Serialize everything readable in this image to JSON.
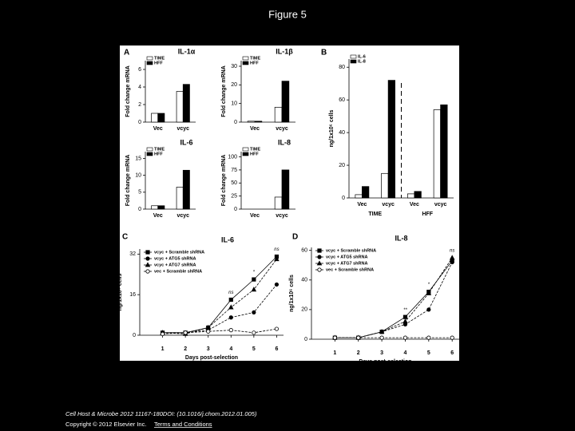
{
  "header": {
    "title": "Figure 5"
  },
  "figure": {
    "panel_labels": [
      "A",
      "B",
      "C",
      "D"
    ]
  },
  "chart_data": [
    {
      "type": "bar",
      "title": "IL-1α",
      "ylabel": "Fold change mRNA",
      "categories": [
        "Vec",
        "vcyc"
      ],
      "series": [
        {
          "name": "TIME",
          "color": "#ffffff",
          "values": [
            1,
            3.5
          ]
        },
        {
          "name": "HFF",
          "color": "#000000",
          "values": [
            1,
            4.3
          ]
        }
      ],
      "ylim": [
        0,
        7
      ],
      "yticks": [
        0,
        2,
        4,
        6
      ]
    },
    {
      "type": "bar",
      "title": "IL-1β",
      "ylabel": "Fold change mRNA",
      "categories": [
        "Vec",
        "vcyc"
      ],
      "series": [
        {
          "name": "TIME",
          "color": "#ffffff",
          "values": [
            0.5,
            8
          ]
        },
        {
          "name": "HFF",
          "color": "#000000",
          "values": [
            0.5,
            22
          ]
        }
      ],
      "ylim": [
        0,
        33
      ],
      "yticks": [
        0,
        10,
        20,
        30
      ]
    },
    {
      "type": "bar",
      "title": "IL-6",
      "ylabel": "Fold change mRNA",
      "categories": [
        "Vec",
        "vcyc"
      ],
      "series": [
        {
          "name": "TIME",
          "color": "#ffffff",
          "values": [
            1,
            6.5
          ]
        },
        {
          "name": "HFF",
          "color": "#000000",
          "values": [
            1,
            11.5
          ]
        }
      ],
      "ylim": [
        0,
        17
      ],
      "yticks": [
        0,
        5,
        10,
        15
      ]
    },
    {
      "type": "bar",
      "title": "IL-8",
      "ylabel": "Fold change mRNA",
      "categories": [
        "Vec",
        "vcyc"
      ],
      "series": [
        {
          "name": "TIME",
          "color": "#ffffff",
          "values": [
            0,
            23
          ]
        },
        {
          "name": "HFF",
          "color": "#000000",
          "values": [
            0,
            75
          ]
        }
      ],
      "ylim": [
        0,
        110
      ],
      "yticks": [
        0,
        25,
        50,
        75,
        100
      ]
    },
    {
      "type": "bar",
      "ylabel": "ng/1x10⁶ cells",
      "categories": [
        "Vec",
        "vcyc",
        "Vec",
        "vcyc"
      ],
      "groups": [
        "TIME",
        "HFF"
      ],
      "series": [
        {
          "name": "IL-6",
          "color": "#ffffff",
          "values": [
            2,
            15,
            2.5,
            54
          ]
        },
        {
          "name": "IL-8",
          "color": "#000000",
          "values": [
            7,
            72,
            4,
            57
          ]
        }
      ],
      "ylim": [
        0,
        85
      ],
      "yticks": [
        0,
        20,
        40,
        60,
        80
      ]
    },
    {
      "type": "line",
      "title": "IL-6",
      "ylabel": "ng/1x10⁶ cells",
      "xlabel": "Days post-selection",
      "x": [
        1,
        2,
        3,
        4,
        5,
        6
      ],
      "xlim": [
        0,
        6.3
      ],
      "xticks": [
        1,
        2,
        3,
        4,
        5,
        6
      ],
      "ylim": [
        0,
        34
      ],
      "yticks": [
        0,
        16,
        32
      ],
      "series": [
        {
          "name": "vcyc + Scramble shRNA",
          "marker": "square",
          "color": "#000000",
          "values": [
            1,
            1,
            3,
            14,
            22,
            31
          ]
        },
        {
          "name": "vcyc + ATG5 shRNA",
          "marker": "circle",
          "color": "#000000",
          "values": [
            1,
            1,
            2,
            7,
            9,
            20
          ]
        },
        {
          "name": "vcyc + ATG7 shRNA",
          "marker": "triangle",
          "color": "#000000",
          "values": [
            1,
            0.5,
            3,
            11,
            18,
            30
          ]
        },
        {
          "name": "vec + Scramble shRNA",
          "marker": "open",
          "color": "#000000",
          "values": [
            0.5,
            1,
            1.5,
            2,
            1,
            2.5
          ]
        }
      ],
      "annotations": [
        {
          "text": "ns",
          "x": 4
        },
        {
          "text": "*",
          "x": 5
        },
        {
          "text": "ns",
          "x": 6
        }
      ]
    },
    {
      "type": "line",
      "title": "IL-8",
      "ylabel": "ng/1x10⁶ cells",
      "xlabel": "Days post-selection",
      "x": [
        1,
        2,
        3,
        4,
        5,
        6
      ],
      "xlim": [
        0,
        6.3
      ],
      "xticks": [
        1,
        2,
        3,
        4,
        5,
        6
      ],
      "ylim": [
        0,
        62
      ],
      "yticks": [
        0,
        20,
        40,
        60
      ],
      "series": [
        {
          "name": "vcyc + Scramble shRNA",
          "marker": "square",
          "color": "#000000",
          "values": [
            1,
            1,
            5,
            15,
            32,
            53
          ]
        },
        {
          "name": "vcyc + ATG5 shRNA",
          "marker": "circle",
          "color": "#000000",
          "values": [
            1,
            1,
            5,
            10,
            20,
            52
          ]
        },
        {
          "name": "vcyc + ATG7 shRNA",
          "marker": "triangle",
          "color": "#000000",
          "values": [
            1,
            1,
            5,
            12,
            31,
            55
          ]
        },
        {
          "name": "vec + Scramble shRNA",
          "marker": "open",
          "color": "#000000",
          "values": [
            1,
            1,
            1,
            1,
            1,
            1
          ]
        }
      ],
      "annotations": [
        {
          "text": "**",
          "x": 4
        },
        {
          "text": "*",
          "x": 5
        },
        {
          "text": "ns",
          "x": 6
        }
      ]
    }
  ],
  "footer": {
    "citation": "Cell Host & Microbe 2012 11167-180DOI: (10.1016/j.chom.2012.01.005)",
    "copyright": "Copyright © 2012 Elsevier Inc.",
    "link": "Terms and Conditions"
  }
}
